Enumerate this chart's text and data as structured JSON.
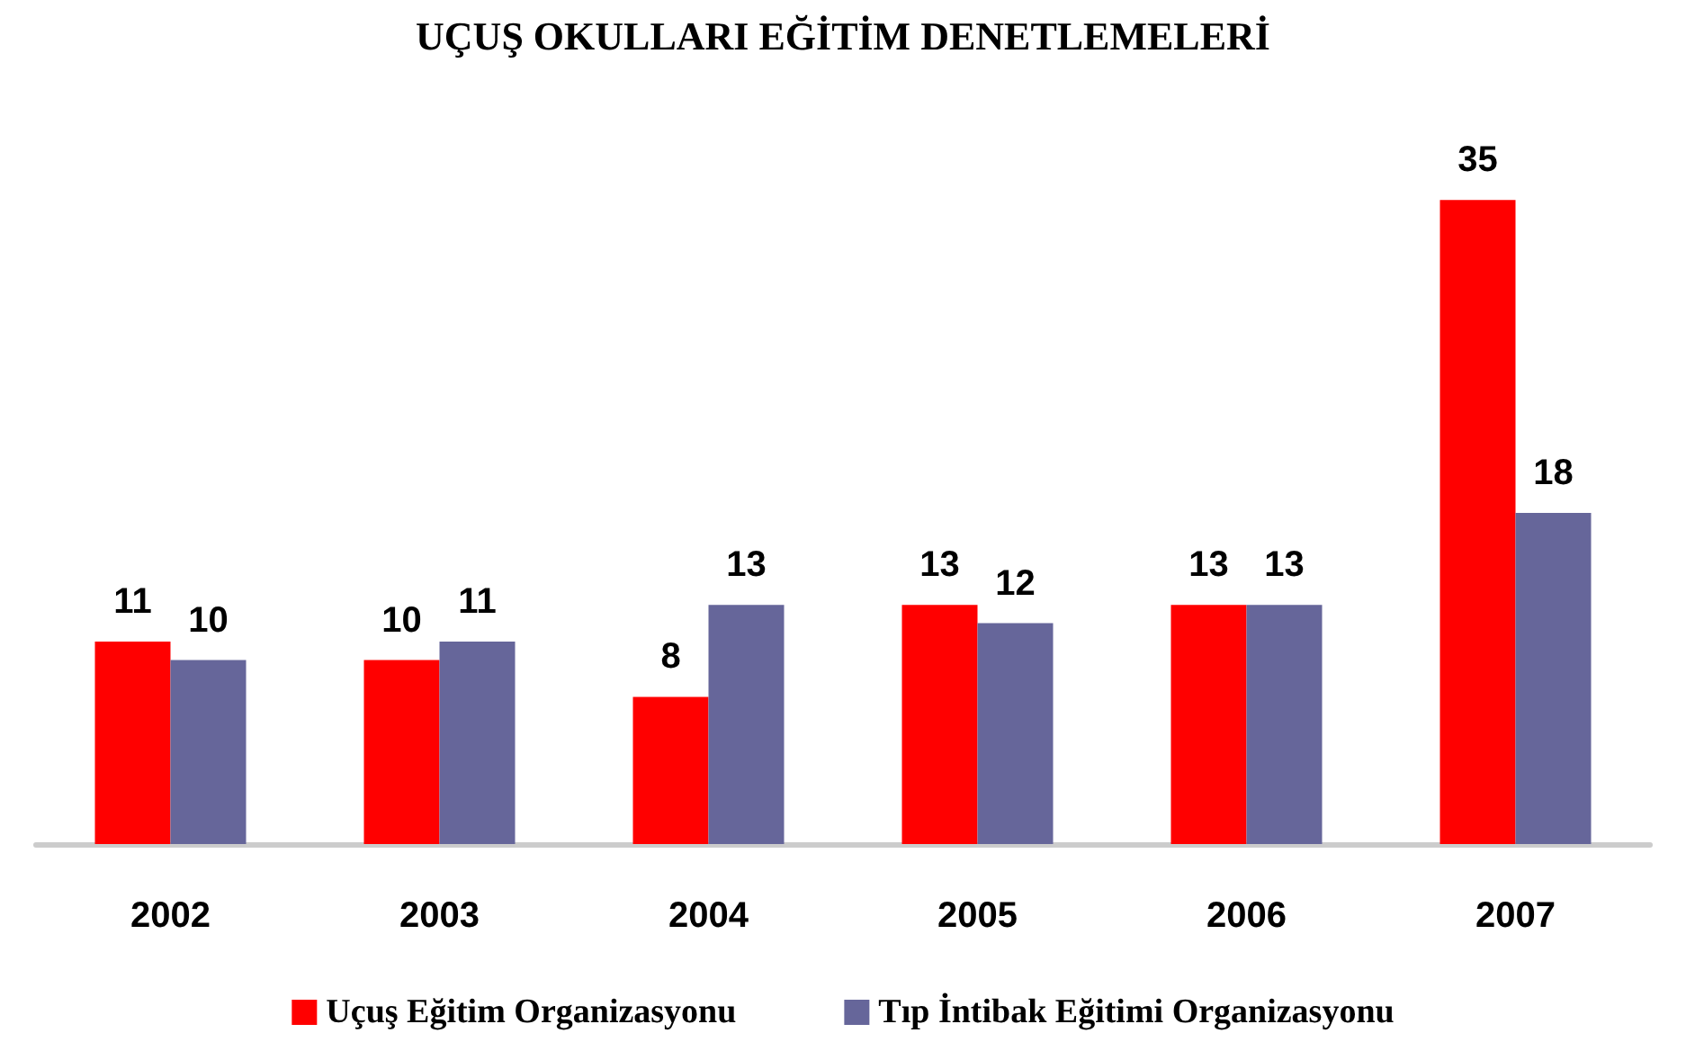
{
  "chart_data": {
    "type": "bar",
    "title": "UÇUŞ OKULLARI EĞİTİM DENETLEMELERİ",
    "categories": [
      "2002",
      "2003",
      "2004",
      "2005",
      "2006",
      "2007"
    ],
    "series": [
      {
        "name": "Uçuş Eğitim Organizasyonu",
        "color": "#ff0000",
        "values": [
          11,
          10,
          8,
          13,
          13,
          35
        ]
      },
      {
        "name": "Tıp İntibak Eğitimi Organizasyonu",
        "color": "#66669a",
        "values": [
          10,
          11,
          13,
          12,
          13,
          18
        ]
      }
    ],
    "data_labels": true,
    "legend": "bottom"
  }
}
